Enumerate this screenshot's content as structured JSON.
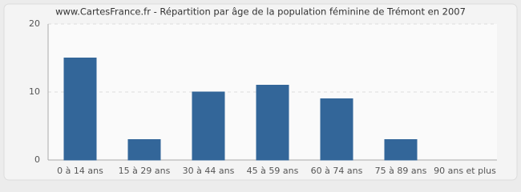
{
  "chart_data": {
    "type": "bar",
    "title": "www.CartesFrance.fr - Répartition par âge de la population féminine de Trémont en 2007",
    "categories": [
      "0 à 14 ans",
      "15 à 29 ans",
      "30 à 44 ans",
      "45 à 59 ans",
      "60 à 74 ans",
      "75 à 89 ans",
      "90 ans et plus"
    ],
    "values": [
      15,
      3,
      10,
      11,
      9,
      3,
      0
    ],
    "color": "#336699",
    "ylim": [
      0,
      20
    ],
    "yticks": [
      0,
      10,
      20
    ],
    "grid": true
  }
}
